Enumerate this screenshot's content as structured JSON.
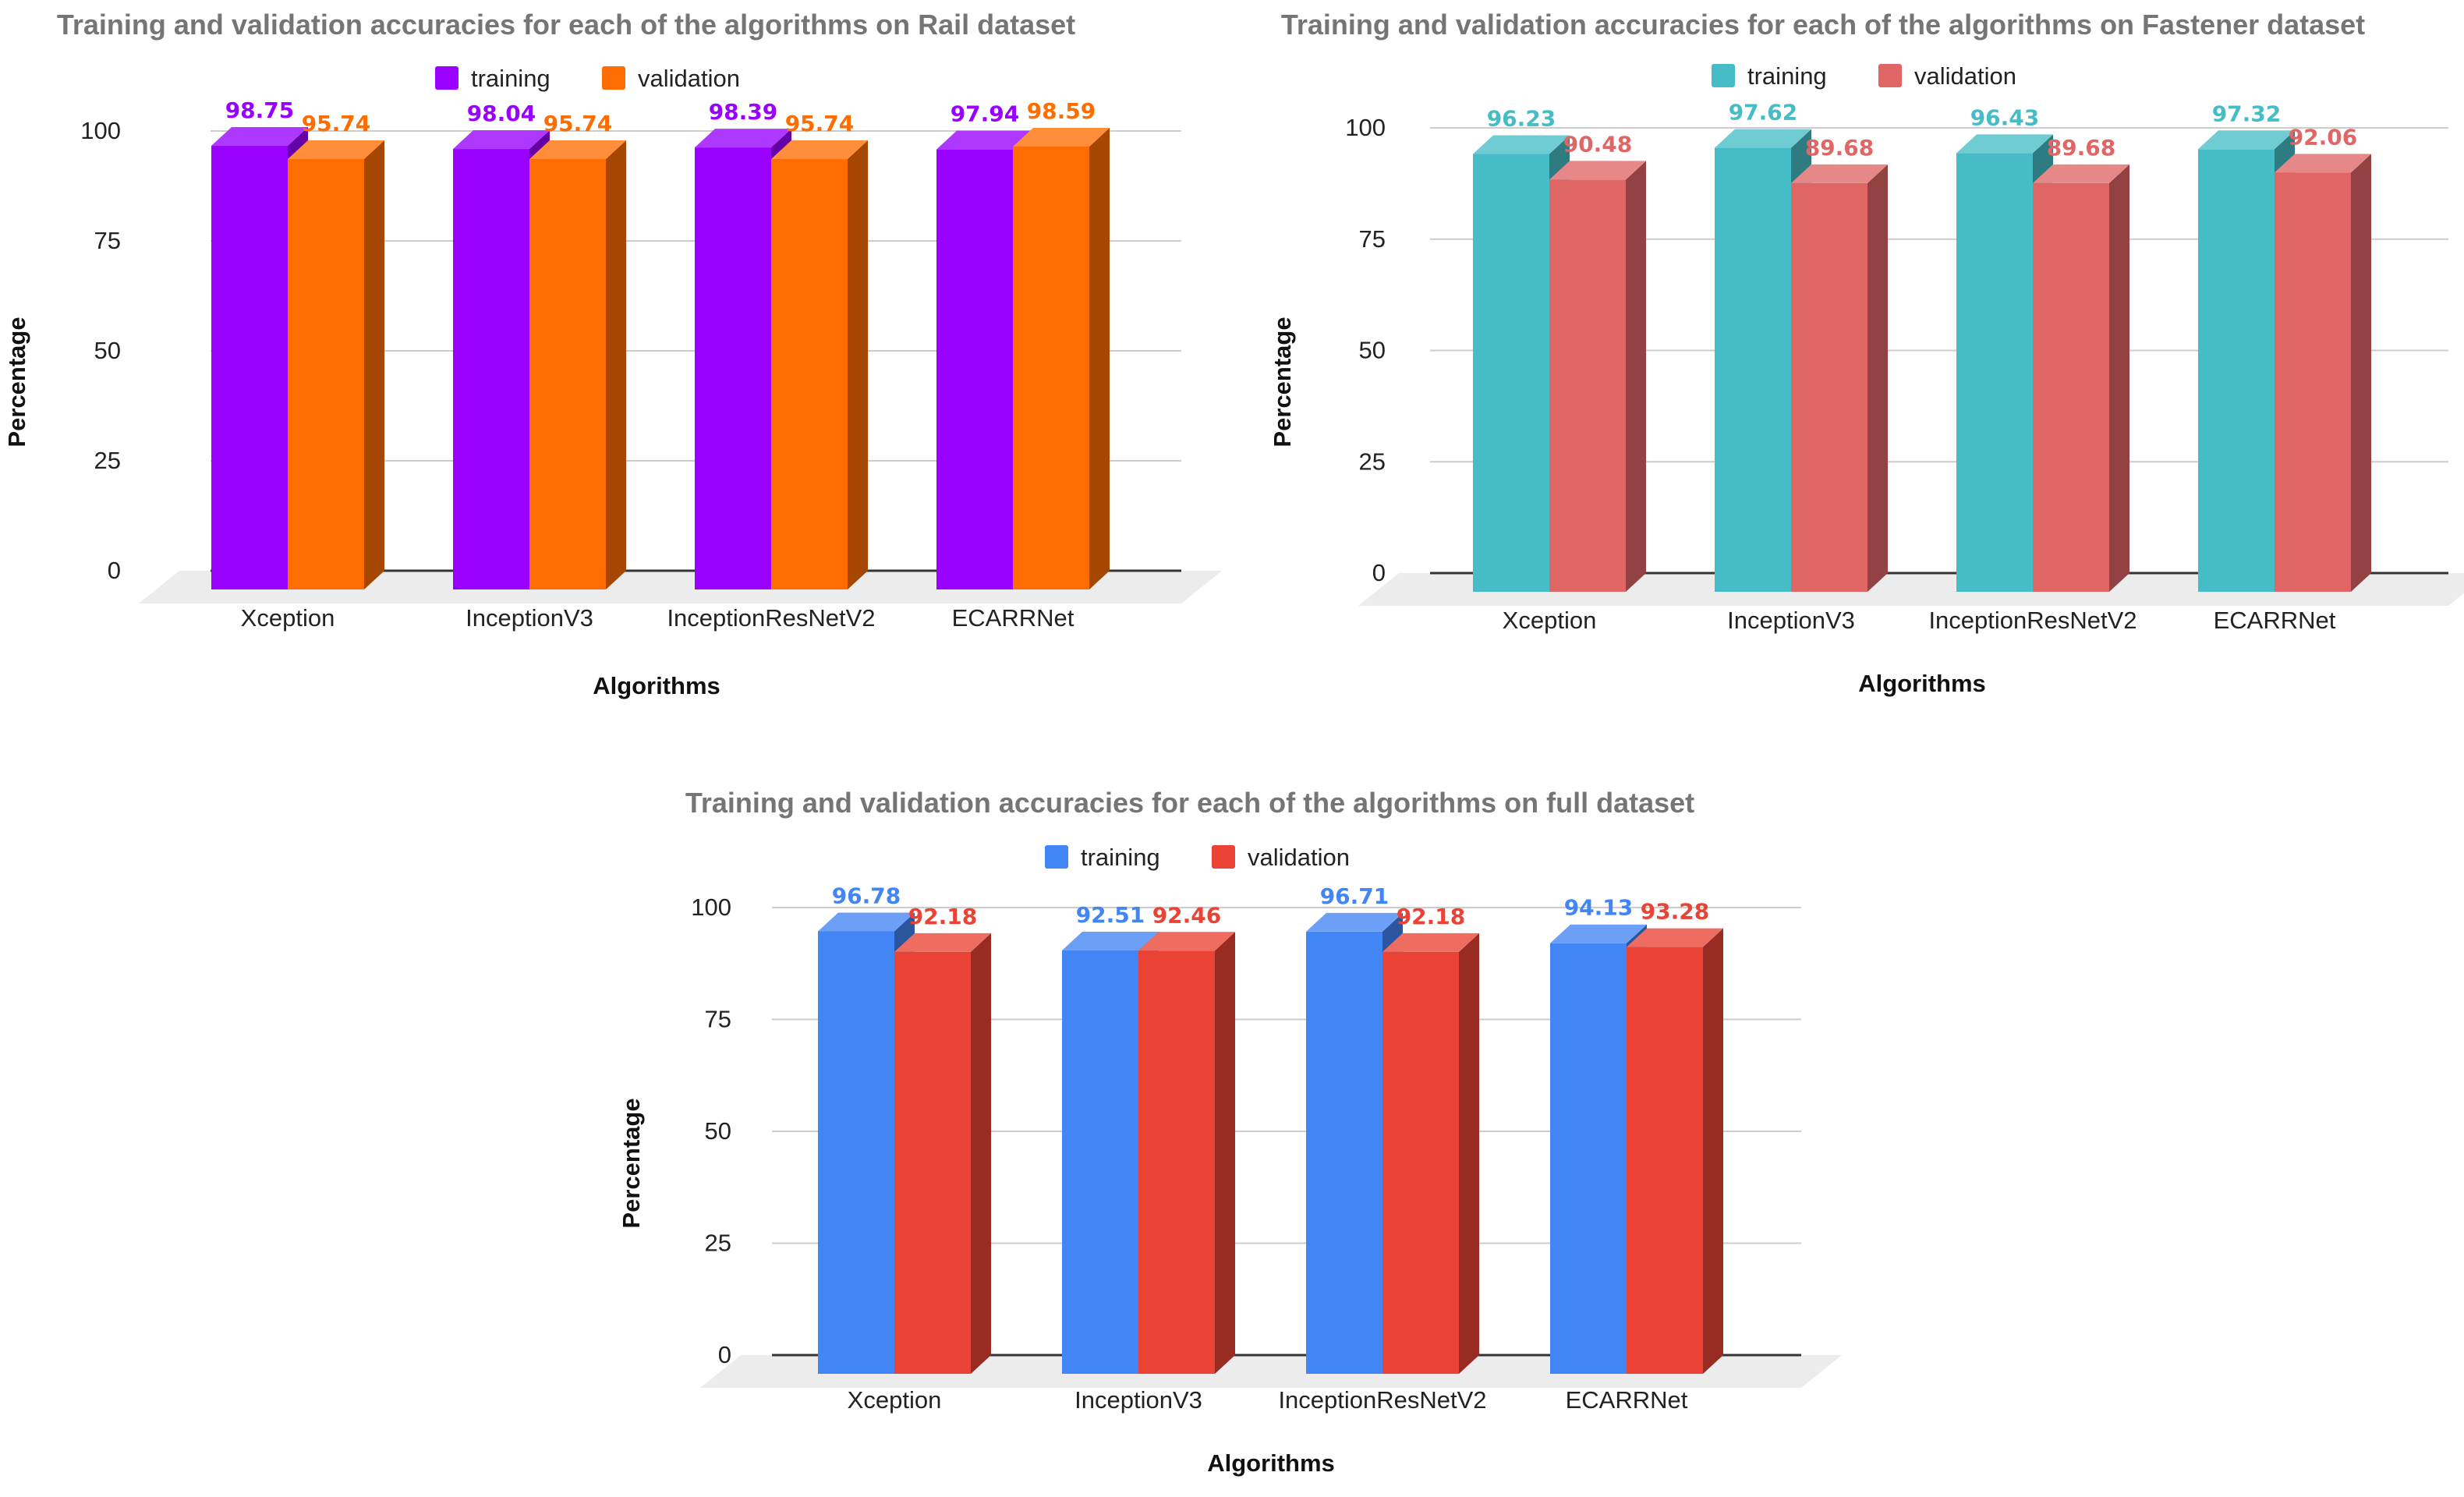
{
  "chart_data": [
    {
      "type": "bar",
      "title": "Training and validation accuracies for each of the algorithms on Rail dataset",
      "xlabel": "Algorithms",
      "ylabel": "Percentage",
      "categories": [
        "Xception",
        "InceptionV3",
        "InceptionResNetV2",
        "ECARRNet"
      ],
      "series": [
        {
          "name": "training",
          "values": [
            98.75,
            98.04,
            98.39,
            97.94
          ],
          "labels": [
            "98.75",
            "98.04",
            "98.39",
            "97.94"
          ],
          "color": "#9900ff"
        },
        {
          "name": "validation",
          "values": [
            95.74,
            95.74,
            95.74,
            98.59
          ],
          "labels": [
            "95.74",
            "95.74",
            "95.74",
            "98.59"
          ],
          "color": "#ff6d01"
        }
      ],
      "ylim": [
        0,
        100
      ],
      "yticks": [
        "0",
        "25",
        "50",
        "75",
        "100"
      ],
      "grid": true,
      "legend": "top"
    },
    {
      "type": "bar",
      "title": "Training and validation accuracies for each of the algorithms on Fastener dataset",
      "xlabel": "Algorithms",
      "ylabel": "Percentage",
      "categories": [
        "Xception",
        "InceptionV3",
        "InceptionResNetV2",
        "ECARRNet"
      ],
      "series": [
        {
          "name": "training",
          "values": [
            96.23,
            97.62,
            96.43,
            97.32
          ],
          "labels": [
            "96.23",
            "97.62",
            "96.43",
            "97.32"
          ],
          "color": "#46bdc6"
        },
        {
          "name": "validation",
          "values": [
            90.48,
            89.68,
            89.68,
            92.06
          ],
          "labels": [
            "90.48",
            "89.68",
            "89.68",
            "92.06"
          ],
          "color": "#e06666"
        }
      ],
      "ylim": [
        0,
        100
      ],
      "yticks": [
        "0",
        "25",
        "50",
        "75",
        "100"
      ],
      "grid": true,
      "legend": "top"
    },
    {
      "type": "bar",
      "title": "Training and validation accuracies for each of the algorithms on full dataset",
      "xlabel": "Algorithms",
      "ylabel": "Percentage",
      "categories": [
        "Xception",
        "InceptionV3",
        "InceptionResNetV2",
        "ECARRNet"
      ],
      "series": [
        {
          "name": "training",
          "values": [
            96.78,
            92.51,
            96.71,
            94.13
          ],
          "labels": [
            "96.78",
            "92.51",
            "96.71",
            "94.13"
          ],
          "color": "#4285f4"
        },
        {
          "name": "validation",
          "values": [
            92.18,
            92.46,
            92.18,
            93.28
          ],
          "labels": [
            "92.18",
            "92.46",
            "92.18",
            "93.28"
          ],
          "color": "#ea4335"
        }
      ],
      "ylim": [
        0,
        100
      ],
      "yticks": [
        "0",
        "25",
        "50",
        "75",
        "100"
      ],
      "grid": true,
      "legend": "top"
    }
  ]
}
